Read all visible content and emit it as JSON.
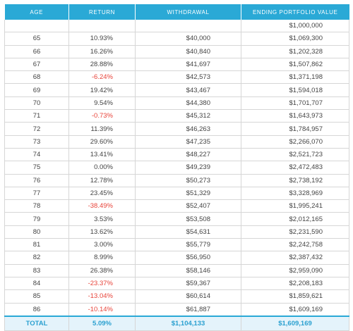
{
  "table": {
    "headers": [
      "AGE",
      "RETURN",
      "WITHDRAWAL",
      "ENDING PORTFOLIO VALUE"
    ],
    "start_row": {
      "age": "",
      "return": "",
      "withdrawal": "",
      "ending": "$1,000,000"
    },
    "rows": [
      {
        "age": "65",
        "return": "10.93%",
        "withdrawal": "$40,000",
        "ending": "$1,069,300",
        "negative": false
      },
      {
        "age": "66",
        "return": "16.26%",
        "withdrawal": "$40,840",
        "ending": "$1,202,328",
        "negative": false
      },
      {
        "age": "67",
        "return": "28.88%",
        "withdrawal": "$41,697",
        "ending": "$1,507,862",
        "negative": false
      },
      {
        "age": "68",
        "return": "-6.24%",
        "withdrawal": "$42,573",
        "ending": "$1,371,198",
        "negative": true
      },
      {
        "age": "69",
        "return": "19.42%",
        "withdrawal": "$43,467",
        "ending": "$1,594,018",
        "negative": false
      },
      {
        "age": "70",
        "return": "9.54%",
        "withdrawal": "$44,380",
        "ending": "$1,701,707",
        "negative": false
      },
      {
        "age": "71",
        "return": "-0.73%",
        "withdrawal": "$45,312",
        "ending": "$1,643,973",
        "negative": true
      },
      {
        "age": "72",
        "return": "11.39%",
        "withdrawal": "$46,263",
        "ending": "$1,784,957",
        "negative": false
      },
      {
        "age": "73",
        "return": "29.60%",
        "withdrawal": "$47,235",
        "ending": "$2,266,070",
        "negative": false
      },
      {
        "age": "74",
        "return": "13.41%",
        "withdrawal": "$48,227",
        "ending": "$2,521,723",
        "negative": false
      },
      {
        "age": "75",
        "return": "0.00%",
        "withdrawal": "$49,239",
        "ending": "$2,472,483",
        "negative": false
      },
      {
        "age": "76",
        "return": "12.78%",
        "withdrawal": "$50,273",
        "ending": "$2,738,192",
        "negative": false
      },
      {
        "age": "77",
        "return": "23.45%",
        "withdrawal": "$51,329",
        "ending": "$3,328,969",
        "negative": false
      },
      {
        "age": "78",
        "return": "-38.49%",
        "withdrawal": "$52,407",
        "ending": "$1,995,241",
        "negative": true
      },
      {
        "age": "79",
        "return": "3.53%",
        "withdrawal": "$53,508",
        "ending": "$2,012,165",
        "negative": false
      },
      {
        "age": "80",
        "return": "13.62%",
        "withdrawal": "$54,631",
        "ending": "$2,231,590",
        "negative": false
      },
      {
        "age": "81",
        "return": "3.00%",
        "withdrawal": "$55,779",
        "ending": "$2,242,758",
        "negative": false
      },
      {
        "age": "82",
        "return": "8.99%",
        "withdrawal": "$56,950",
        "ending": "$2,387,432",
        "negative": false
      },
      {
        "age": "83",
        "return": "26.38%",
        "withdrawal": "$58,146",
        "ending": "$2,959,090",
        "negative": false
      },
      {
        "age": "84",
        "return": "-23.37%",
        "withdrawal": "$59,367",
        "ending": "$2,208,183",
        "negative": true
      },
      {
        "age": "85",
        "return": "-13.04%",
        "withdrawal": "$60,614",
        "ending": "$1,859,621",
        "negative": true
      },
      {
        "age": "86",
        "return": "-10.14%",
        "withdrawal": "$61,887",
        "ending": "$1,609,169",
        "negative": true
      }
    ],
    "total": {
      "label": "TOTAL",
      "return": "5.09%",
      "withdrawal": "$1,104,133",
      "ending": "$1,609,169"
    }
  },
  "colors": {
    "header_bg": "#2aa9d6",
    "negative_text": "#e8443a",
    "total_bg": "#e4f3fb",
    "total_text": "#2aa0d0"
  }
}
